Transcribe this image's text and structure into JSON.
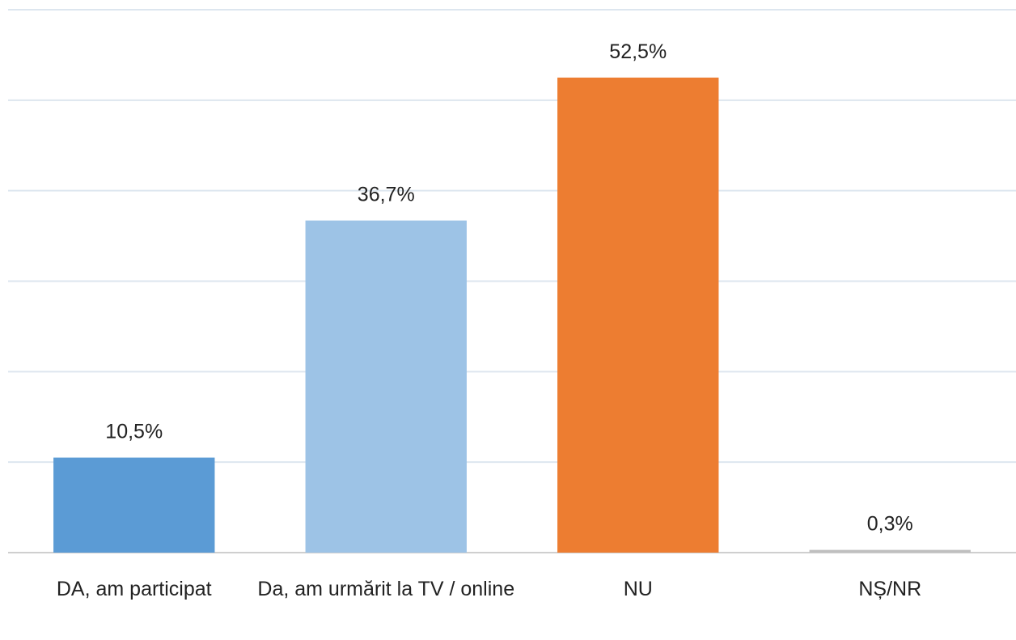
{
  "chart_data": {
    "type": "bar",
    "categories": [
      "DA, am participat",
      "Da, am urmărit la TV / online",
      "NU",
      "NȘ/NR"
    ],
    "values": [
      10.5,
      36.7,
      52.5,
      0.3
    ],
    "value_labels": [
      "10,5%",
      "36,7%",
      "52,5%",
      "0,3%"
    ],
    "colors": [
      "#5b9bd5",
      "#9dc3e6",
      "#ed7d31",
      "#bfbfbf"
    ],
    "ylim": [
      0,
      60
    ],
    "yticks": [
      0,
      10,
      20,
      30,
      40,
      50,
      60
    ],
    "grid": true,
    "ytick_labels": false
  }
}
